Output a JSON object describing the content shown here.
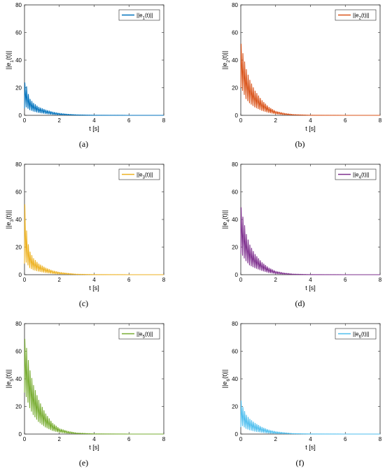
{
  "chart_data": [
    {
      "type": "line",
      "subcaption": "(a)",
      "xlabel": "t [s]",
      "ylabel": "||e1(t)||",
      "xlim": [
        0,
        8
      ],
      "ylim": [
        0,
        80
      ],
      "xticks": [
        0,
        2,
        4,
        6,
        8
      ],
      "yticks": [
        0,
        20,
        40,
        60,
        80
      ],
      "legend_position": "top-right",
      "series": [
        {
          "name": "||e1(t)||",
          "color": "#0072BD",
          "x": [
            0,
            0.1,
            0.2,
            0.3,
            0.5,
            0.8,
            1.2,
            1.6,
            2.0,
            2.5,
            3.0,
            4.0,
            6.0,
            8.0
          ],
          "peaks": [
            24,
            22,
            16,
            12,
            9,
            6,
            4,
            2.5,
            1.5,
            0.8,
            0.4,
            0.1,
            0,
            0
          ],
          "troughs": [
            5,
            6,
            5,
            4,
            3,
            2,
            1.2,
            0.6,
            0.3,
            0.2,
            0.1,
            0,
            0,
            0
          ]
        }
      ]
    },
    {
      "type": "line",
      "subcaption": "(b)",
      "xlabel": "t [s]",
      "ylabel": "||e2(t)||",
      "xlim": [
        0,
        8
      ],
      "ylim": [
        0,
        80
      ],
      "xticks": [
        0,
        2,
        4,
        6,
        8
      ],
      "yticks": [
        0,
        20,
        40,
        60,
        80
      ],
      "legend_position": "top-right",
      "series": [
        {
          "name": "||e2(t)||",
          "color": "#D95319",
          "x": [
            0,
            0.1,
            0.2,
            0.3,
            0.5,
            0.8,
            1.2,
            1.6,
            2.0,
            2.5,
            3.0,
            4.0,
            6.0,
            8.0
          ],
          "peaks": [
            53,
            46,
            40,
            34,
            26,
            18,
            11,
            6,
            3,
            1.5,
            0.6,
            0.1,
            0,
            0
          ],
          "troughs": [
            20,
            18,
            15,
            12,
            9,
            6,
            3.5,
            2,
            1,
            0.4,
            0.2,
            0,
            0,
            0
          ]
        }
      ]
    },
    {
      "type": "line",
      "subcaption": "(c)",
      "xlabel": "t [s]",
      "ylabel": "||e3(t)||",
      "xlim": [
        0,
        8
      ],
      "ylim": [
        0,
        80
      ],
      "xticks": [
        0,
        2,
        4,
        6,
        8
      ],
      "yticks": [
        0,
        20,
        40,
        60,
        80
      ],
      "legend_position": "top-right",
      "series": [
        {
          "name": "||e3(t)||",
          "color": "#EDB120",
          "x": [
            0,
            0.1,
            0.2,
            0.3,
            0.5,
            0.8,
            1.2,
            1.6,
            2.0,
            2.5,
            3.0,
            4.0,
            6.0,
            8.0
          ],
          "peaks": [
            55,
            34,
            23,
            17,
            12,
            8,
            5,
            3,
            1.8,
            1,
            0.4,
            0.1,
            0,
            0
          ],
          "troughs": [
            8,
            9,
            7,
            5,
            3.5,
            2.5,
            1.5,
            0.8,
            0.4,
            0.2,
            0.1,
            0,
            0,
            0
          ]
        }
      ]
    },
    {
      "type": "line",
      "subcaption": "(d)",
      "xlabel": "t [s]",
      "ylabel": "||e4(t)||",
      "xlim": [
        0,
        8
      ],
      "ylim": [
        0,
        80
      ],
      "xticks": [
        0,
        2,
        4,
        6,
        8
      ],
      "yticks": [
        0,
        20,
        40,
        60,
        80
      ],
      "legend_position": "top-right",
      "series": [
        {
          "name": "||e4(t)||",
          "color": "#7E2F8E",
          "x": [
            0,
            0.1,
            0.2,
            0.3,
            0.5,
            0.8,
            1.2,
            1.6,
            2.0,
            2.5,
            3.0,
            4.0,
            6.0,
            8.0
          ],
          "peaks": [
            50,
            43,
            37,
            30,
            22,
            15,
            9,
            5,
            2.5,
            1.2,
            0.5,
            0.1,
            0,
            0
          ],
          "troughs": [
            15,
            14,
            12,
            10,
            7,
            5,
            3,
            1.5,
            0.7,
            0.3,
            0.1,
            0,
            0,
            0
          ]
        }
      ]
    },
    {
      "type": "line",
      "subcaption": "(e)",
      "xlabel": "t [s]",
      "ylabel": "||e5(t)||",
      "xlim": [
        0,
        8
      ],
      "ylim": [
        0,
        80
      ],
      "xticks": [
        0,
        2,
        4,
        6,
        8
      ],
      "yticks": [
        0,
        20,
        40,
        60,
        80
      ],
      "legend_position": "top-right",
      "series": [
        {
          "name": "||e5(t)||",
          "color": "#77AC30",
          "x": [
            0,
            0.1,
            0.2,
            0.3,
            0.5,
            0.8,
            1.2,
            1.6,
            2.0,
            2.5,
            3.0,
            4.0,
            6.0,
            8.0
          ],
          "peaks": [
            70,
            64,
            55,
            47,
            36,
            25,
            15,
            8,
            4,
            2,
            0.8,
            0.2,
            0,
            0
          ],
          "troughs": [
            30,
            27,
            23,
            19,
            14,
            9,
            5,
            2.5,
            1.2,
            0.5,
            0.2,
            0,
            0,
            0
          ]
        }
      ]
    },
    {
      "type": "line",
      "subcaption": "(f)",
      "xlabel": "t [s]",
      "ylabel": "||e6(t)||",
      "xlim": [
        0,
        8
      ],
      "ylim": [
        0,
        80
      ],
      "xticks": [
        0,
        2,
        4,
        6,
        8
      ],
      "yticks": [
        0,
        20,
        40,
        60,
        80
      ],
      "legend_position": "top-right",
      "series": [
        {
          "name": "||e6(t)||",
          "color": "#4DBEEE",
          "x": [
            0,
            0.1,
            0.2,
            0.3,
            0.5,
            0.8,
            1.2,
            1.6,
            2.0,
            2.5,
            3.0,
            4.0,
            6.0,
            8.0
          ],
          "peaks": [
            25,
            20,
            17,
            14,
            11,
            8,
            5,
            3,
            1.8,
            1,
            0.4,
            0.1,
            0,
            0
          ],
          "troughs": [
            5,
            6,
            5,
            4,
            3,
            2,
            1.2,
            0.6,
            0.3,
            0.2,
            0.1,
            0,
            0,
            0
          ]
        }
      ]
    }
  ]
}
